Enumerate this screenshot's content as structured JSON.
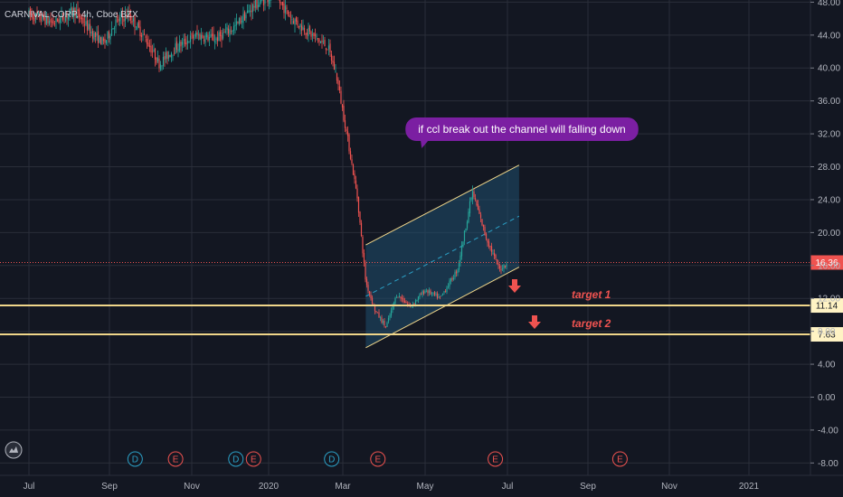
{
  "header": {
    "title": "CARNIVAL CORP, 4h, Cboe BZX"
  },
  "chart_data": {
    "type": "candlestick",
    "symbol": "CARNIVAL CORP",
    "interval": "4h",
    "exchange": "Cboe BZX",
    "ylim": [
      -10,
      49
    ],
    "y_ticks": [
      48,
      44,
      40,
      36,
      32,
      28,
      24,
      20,
      16,
      12,
      8,
      4,
      0,
      -4,
      -8
    ],
    "x_ticks": [
      "Jul",
      "Sep",
      "Nov",
      "2020",
      "Mar",
      "May",
      "Jul",
      "Sep",
      "Nov",
      "2021"
    ],
    "path": [
      [
        "2019-07-01",
        46.5
      ],
      [
        "2019-07-20",
        45.5
      ],
      [
        "2019-08-05",
        47.0
      ],
      [
        "2019-08-20",
        44.0
      ],
      [
        "2019-08-28",
        43.0
      ],
      [
        "2019-09-05",
        45.5
      ],
      [
        "2019-09-15",
        46.5
      ],
      [
        "2019-09-28",
        43.5
      ],
      [
        "2019-10-08",
        40.5
      ],
      [
        "2019-10-20",
        42.5
      ],
      [
        "2019-11-05",
        44.0
      ],
      [
        "2019-11-20",
        43.5
      ],
      [
        "2019-12-05",
        45.0
      ],
      [
        "2019-12-20",
        47.5
      ],
      [
        "2020-01-05",
        49.0
      ],
      [
        "2020-01-20",
        46.0
      ],
      [
        "2020-02-05",
        44.0
      ],
      [
        "2020-02-18",
        42.5
      ],
      [
        "2020-02-25",
        39.0
      ],
      [
        "2020-03-05",
        31.0
      ],
      [
        "2020-03-12",
        24.0
      ],
      [
        "2020-03-18",
        14.0
      ],
      [
        "2020-03-25",
        10.5
      ],
      [
        "2020-04-02",
        8.5
      ],
      [
        "2020-04-10",
        12.5
      ],
      [
        "2020-04-20",
        11.0
      ],
      [
        "2020-05-01",
        13.0
      ],
      [
        "2020-05-12",
        12.0
      ],
      [
        "2020-05-25",
        15.5
      ],
      [
        "2020-06-05",
        25.0
      ],
      [
        "2020-06-15",
        19.5
      ],
      [
        "2020-06-25",
        15.5
      ],
      [
        "2020-07-01",
        16.36
      ]
    ],
    "last_price": 16.36,
    "horizontal_levels": [
      {
        "value": 11.14,
        "label": "11.14",
        "target": "target 1"
      },
      {
        "value": 7.63,
        "label": "7.63",
        "target": "target 2"
      }
    ],
    "channel": {
      "upper": [
        [
          "2020-03-18",
          18.5
        ],
        [
          "2020-07-10",
          28.2
        ]
      ],
      "lower": [
        [
          "2020-03-18",
          6.0
        ],
        [
          "2020-07-10",
          15.8
        ]
      ]
    },
    "annotation": "if ccl break out the channel will falling down",
    "events": [
      {
        "date": "2019-07-01",
        "type": "tv-logo"
      },
      {
        "date": "2019-09-20",
        "type": "D"
      },
      {
        "date": "2019-10-20",
        "type": "E"
      },
      {
        "date": "2019-12-06",
        "type": "D"
      },
      {
        "date": "2019-12-20",
        "type": "E"
      },
      {
        "date": "2020-02-21",
        "type": "D"
      },
      {
        "date": "2020-03-27",
        "type": "E"
      },
      {
        "date": "2020-06-22",
        "type": "E"
      },
      {
        "date": "2020-09-25",
        "type": "E"
      }
    ],
    "colors": {
      "background": "#131722",
      "grid": "#2a2e39",
      "up": "#26a69a",
      "down": "#ef5350",
      "channel_line": "#f0d68a",
      "channel_fill": "#1f4e6e",
      "midline": "#2ba0c6",
      "bubble": "#7b1fa2",
      "level_label_bg": "#fff3c4"
    }
  }
}
